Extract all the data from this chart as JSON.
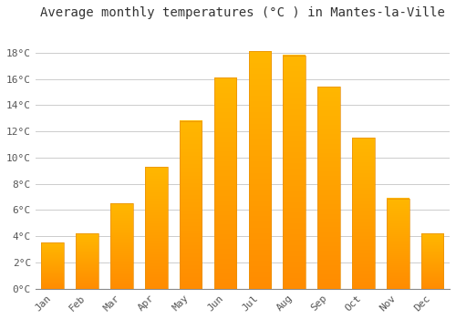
{
  "title": "Average monthly temperatures (°C ) in Mantes-la-Ville",
  "months": [
    "Jan",
    "Feb",
    "Mar",
    "Apr",
    "May",
    "Jun",
    "Jul",
    "Aug",
    "Sep",
    "Oct",
    "Nov",
    "Dec"
  ],
  "values": [
    3.5,
    4.2,
    6.5,
    9.3,
    12.8,
    16.1,
    18.1,
    17.8,
    15.4,
    11.5,
    6.9,
    4.2
  ],
  "bar_color_top": "#FFB700",
  "bar_color_bottom": "#FF8C00",
  "background_color": "#FFFFFF",
  "grid_color": "#cccccc",
  "title_fontsize": 10,
  "tick_fontsize": 8,
  "ylim": [
    0,
    20
  ],
  "yticks": [
    0,
    2,
    4,
    6,
    8,
    10,
    12,
    14,
    16,
    18
  ]
}
